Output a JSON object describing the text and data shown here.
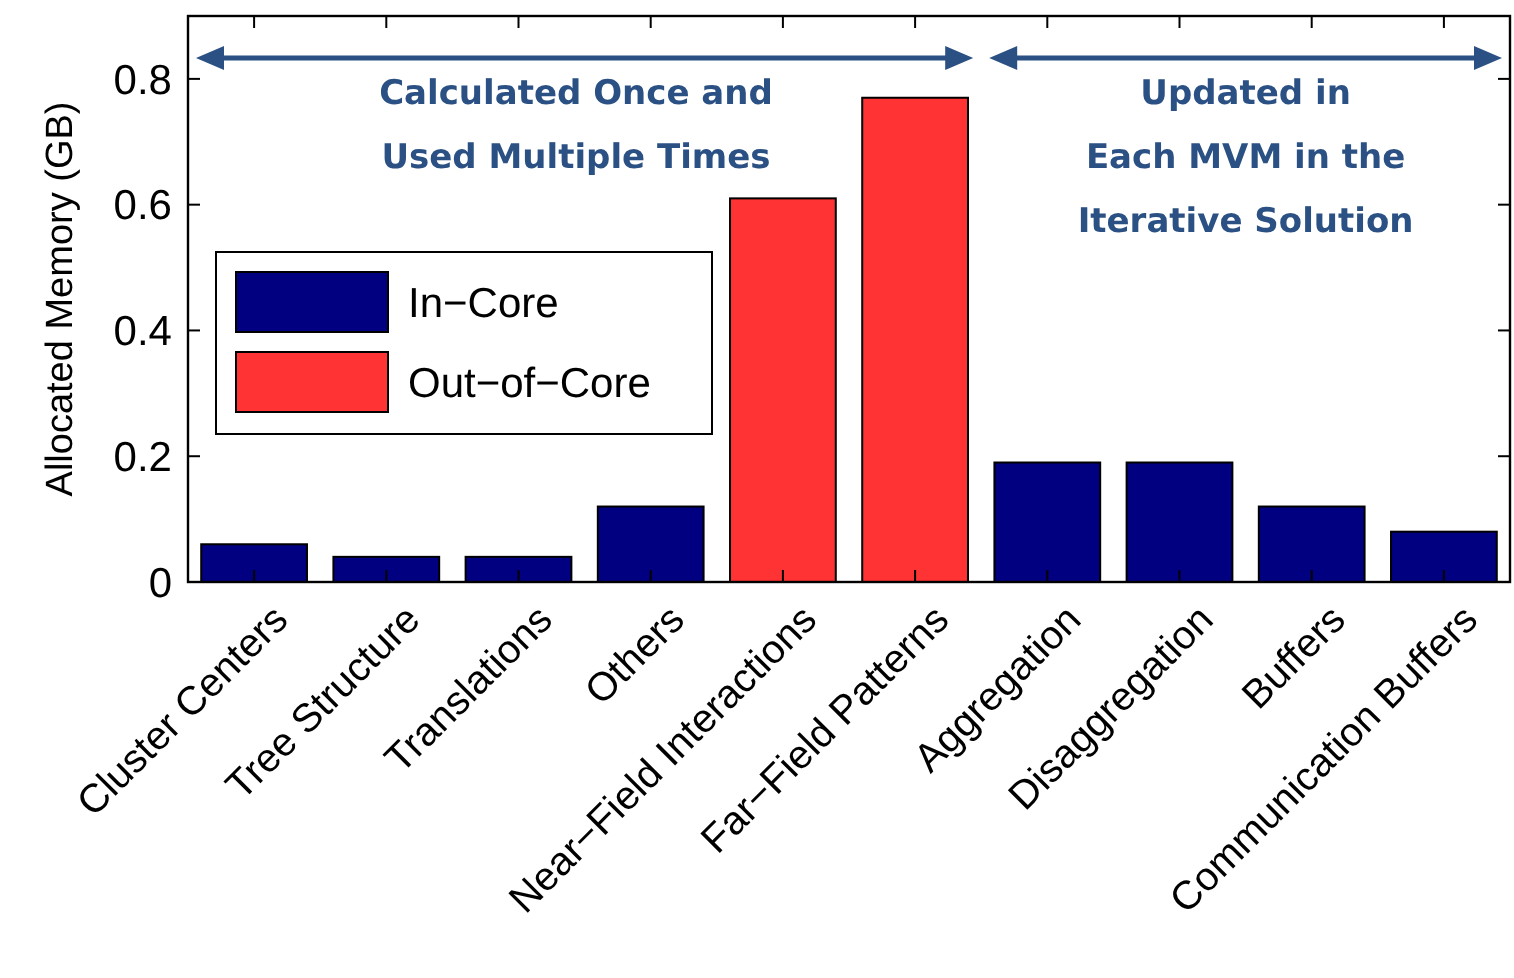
{
  "chart_data": {
    "type": "bar",
    "ylabel": "Allocated Memory (GB)",
    "categories": [
      "Cluster Centers",
      "Tree Structure",
      "Translations",
      "Others",
      "Near−Field Interactions",
      "Far−Field Patterns",
      "Aggregation",
      "Disaggregation",
      "Buffers",
      "Communication Buffers"
    ],
    "series": [
      {
        "name": "In−Core",
        "color": "#000080",
        "values": [
          0.06,
          0.04,
          0.04,
          0.12,
          null,
          null,
          0.19,
          0.19,
          0.12,
          0.08
        ]
      },
      {
        "name": "Out−of−Core",
        "color": "#ff3333",
        "values": [
          null,
          null,
          null,
          null,
          0.61,
          0.77,
          null,
          null,
          null,
          null
        ]
      }
    ],
    "ylim": [
      0,
      0.9
    ],
    "yticks": [
      0,
      0.2,
      0.4,
      0.6,
      0.8
    ],
    "grid": false,
    "legend": "left",
    "annotations": [
      "Calculated Once and\nUsed Multiple Times",
      "Updated in\nEach MVM in the\nIterative Solution"
    ]
  }
}
